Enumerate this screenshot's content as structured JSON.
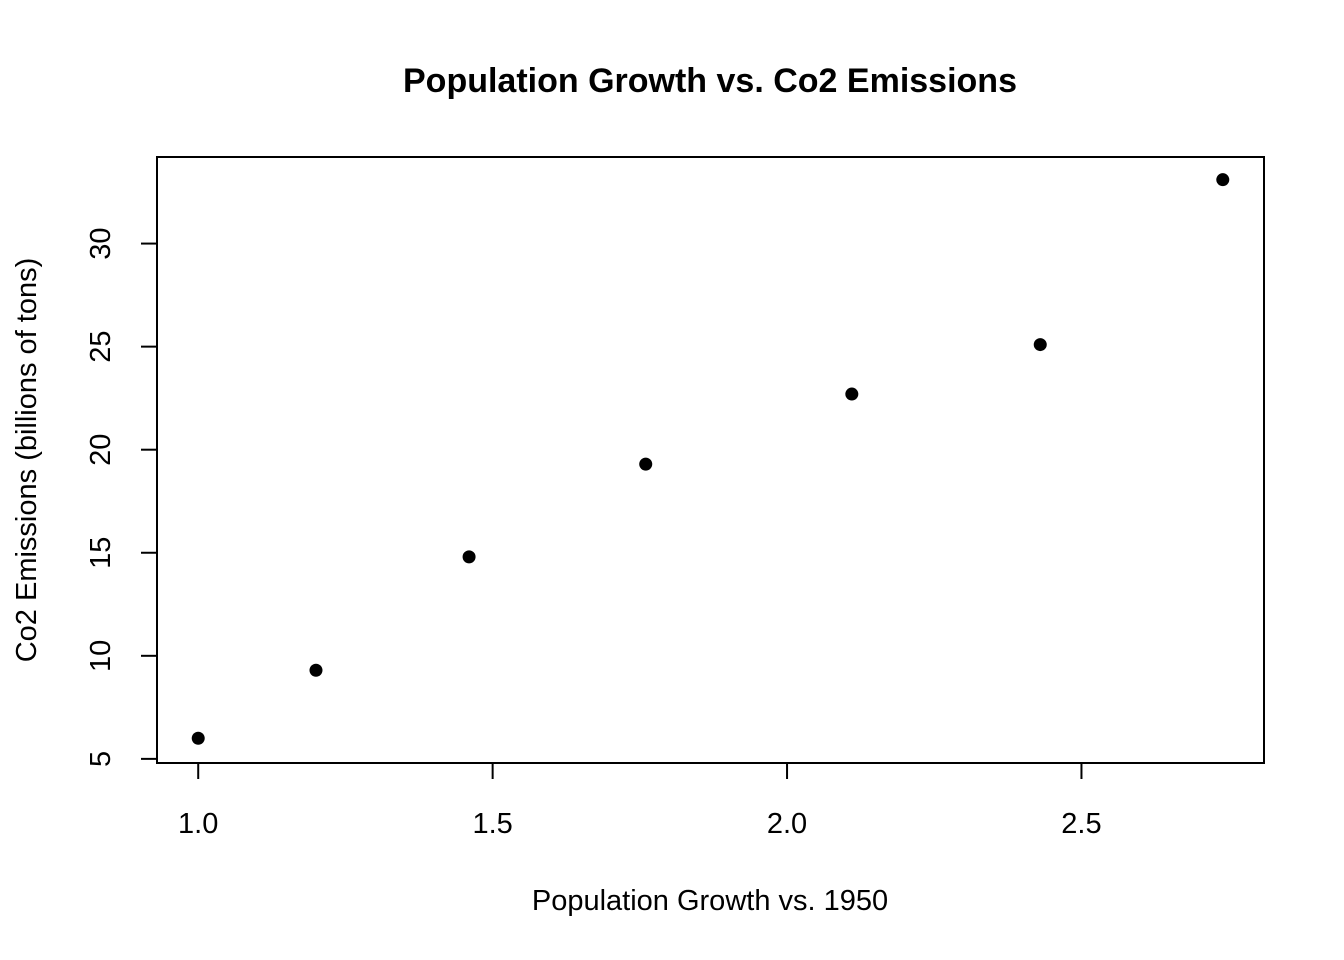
{
  "chart_data": {
    "type": "scatter",
    "title": "Population Growth vs. Co2 Emissions",
    "xlabel": "Population Growth vs. 1950",
    "ylabel": "Co2 Emissions (billions of tons)",
    "xlim": [
      0.93,
      2.81
    ],
    "ylim": [
      4.8,
      34.2
    ],
    "x_ticks": [
      1.0,
      1.5,
      2.0,
      2.5
    ],
    "x_tick_labels": [
      "1.0",
      "1.5",
      "2.0",
      "2.5"
    ],
    "y_ticks": [
      5,
      10,
      15,
      20,
      25,
      30
    ],
    "y_tick_labels": [
      "5",
      "10",
      "15",
      "20",
      "25",
      "30"
    ],
    "point_color": "#000000",
    "points": [
      {
        "x": 1.0,
        "y": 6.0
      },
      {
        "x": 1.2,
        "y": 9.3
      },
      {
        "x": 1.46,
        "y": 14.8
      },
      {
        "x": 1.76,
        "y": 19.3
      },
      {
        "x": 2.11,
        "y": 22.7
      },
      {
        "x": 2.43,
        "y": 25.1
      },
      {
        "x": 2.74,
        "y": 33.1
      }
    ]
  }
}
